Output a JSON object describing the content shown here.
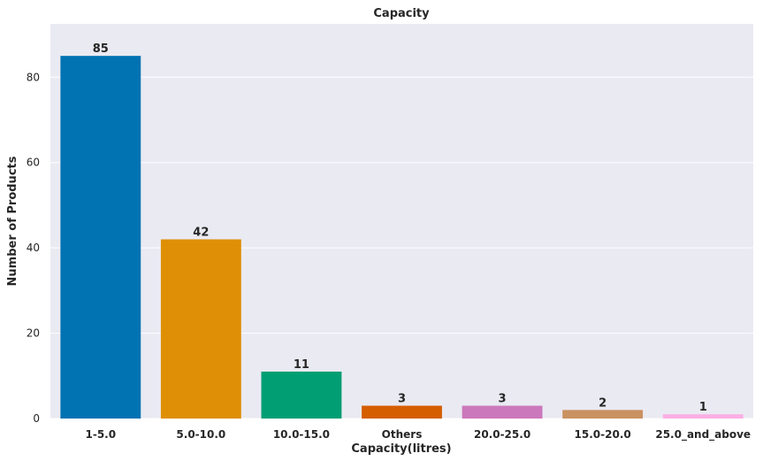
{
  "chart_data": {
    "type": "bar",
    "title": "Capacity",
    "xlabel": "Capacity(litres)",
    "ylabel": "Number of Products",
    "categories": [
      "1-5.0",
      "5.0-10.0",
      "10.0-15.0",
      "Others",
      "20.0-25.0",
      "15.0-20.0",
      "25.0_and_above"
    ],
    "values": [
      85,
      42,
      11,
      3,
      3,
      2,
      1
    ],
    "data_labels": [
      "85",
      "42",
      "11",
      "3",
      "3",
      "2",
      "1"
    ],
    "colors": [
      "#0173b2",
      "#de8f05",
      "#029e73",
      "#d55e00",
      "#cc78bc",
      "#ca9161",
      "#fbafe4"
    ],
    "ylim": [
      0,
      92.5
    ],
    "yticks": [
      0,
      20,
      40,
      60,
      80
    ],
    "ytick_labels": [
      "0",
      "20",
      "40",
      "60",
      "80"
    ],
    "grid": true,
    "background": "#eaeaf2"
  }
}
